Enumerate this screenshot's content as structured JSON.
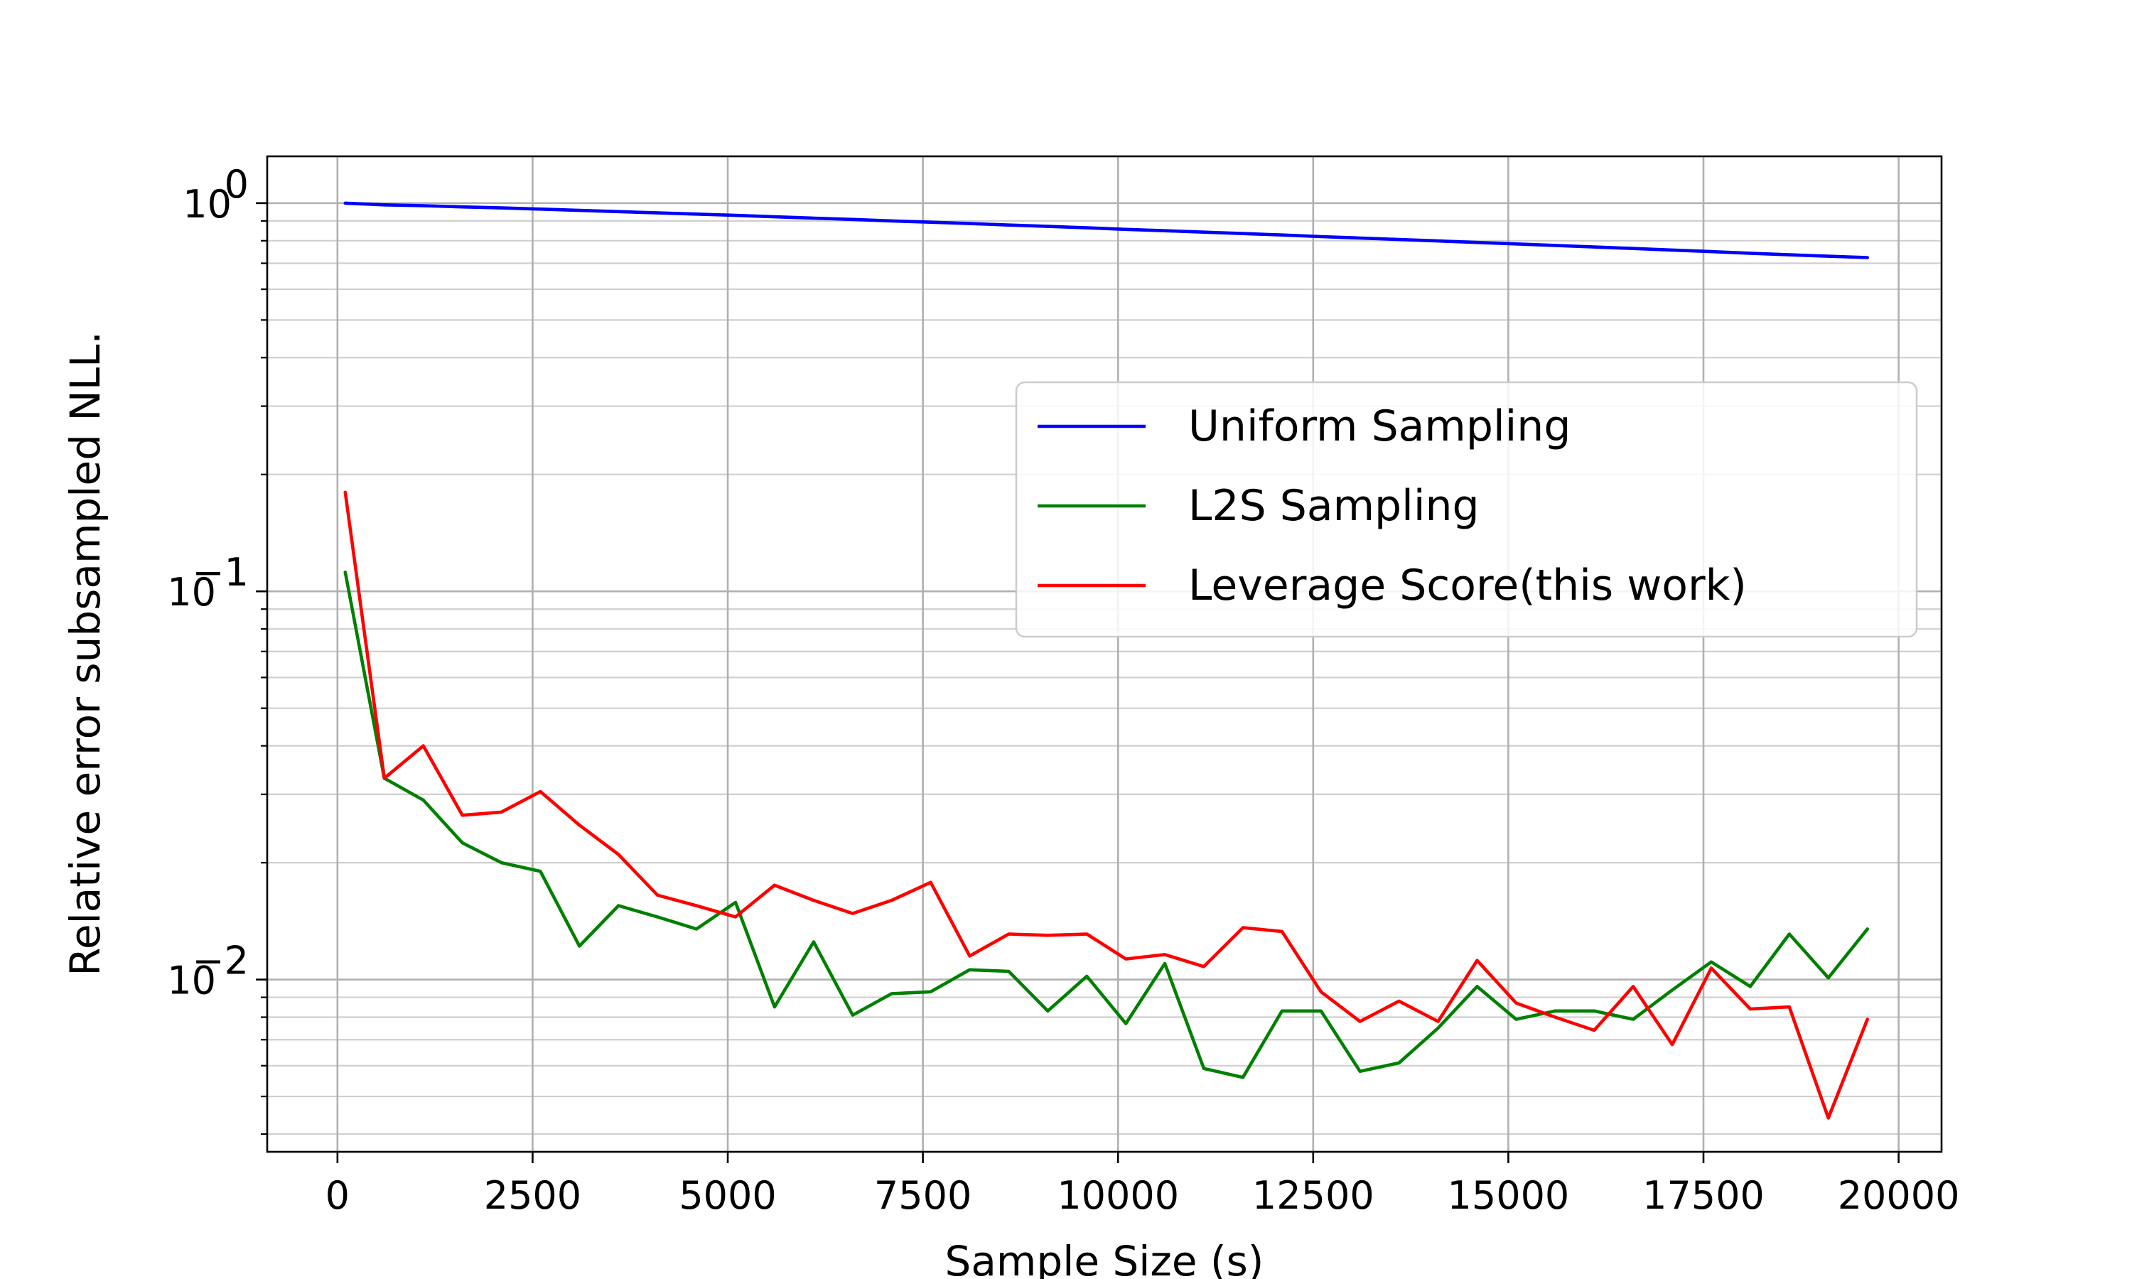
{
  "chart_data": {
    "type": "line",
    "title": "",
    "xlabel": "Sample Size (s)",
    "ylabel": "Relative error subsampled NLL.",
    "yscale": "log",
    "xlim": [
      -900,
      20550
    ],
    "ylim": [
      0.0036,
      1.32
    ],
    "grid": true,
    "legend_position": "center-right",
    "x_ticks": [
      0,
      2500,
      5000,
      7500,
      10000,
      12500,
      15000,
      17500,
      20000
    ],
    "x_tick_labels": [
      "0",
      "2500",
      "5000",
      "7500",
      "10000",
      "12500",
      "15000",
      "17500",
      "20000"
    ],
    "y_ticks": [
      {
        "value": 1,
        "base": "10",
        "exp": "0"
      },
      {
        "value": 0.1,
        "base": "10",
        "exp": "−1"
      },
      {
        "value": 0.01,
        "base": "10",
        "exp": "−2"
      }
    ],
    "x": [
      100,
      600,
      1100,
      1600,
      2100,
      2600,
      3100,
      3600,
      4100,
      4600,
      5100,
      5600,
      6100,
      6600,
      7100,
      7600,
      8100,
      8600,
      9100,
      9600,
      10100,
      10600,
      11100,
      11600,
      12100,
      12600,
      13100,
      13600,
      14100,
      14600,
      15100,
      15600,
      16100,
      16600,
      17100,
      17600,
      18100,
      18600,
      19100,
      19600
    ],
    "series": [
      {
        "name": "Uniform Sampling",
        "color": "#0000ff",
        "values": [
          1.0,
          0.99,
          0.985,
          0.978,
          0.972,
          0.965,
          0.958,
          0.951,
          0.944,
          0.937,
          0.93,
          0.922,
          0.915,
          0.908,
          0.9,
          0.893,
          0.886,
          0.878,
          0.871,
          0.864,
          0.856,
          0.849,
          0.842,
          0.835,
          0.828,
          0.82,
          0.813,
          0.806,
          0.799,
          0.792,
          0.785,
          0.778,
          0.771,
          0.764,
          0.757,
          0.75,
          0.743,
          0.736,
          0.73,
          0.724
        ]
      },
      {
        "name": "L2S Sampling",
        "color": "#008000",
        "values": [
          0.112,
          0.033,
          0.029,
          0.0225,
          0.02,
          0.019,
          0.0122,
          0.0155,
          0.0145,
          0.0135,
          0.0158,
          0.0085,
          0.0125,
          0.0081,
          0.0092,
          0.0093,
          0.0106,
          0.0105,
          0.0083,
          0.0102,
          0.0077,
          0.011,
          0.0059,
          0.0056,
          0.0083,
          0.0083,
          0.0058,
          0.0061,
          0.0075,
          0.0096,
          0.0079,
          0.0083,
          0.0083,
          0.0079,
          0.0094,
          0.0111,
          0.0096,
          0.0131,
          0.0101,
          0.0135
        ]
      },
      {
        "name": "Leverage Score(this work)",
        "color": "#ff0000",
        "values": [
          0.18,
          0.033,
          0.04,
          0.0265,
          0.027,
          0.0305,
          0.025,
          0.021,
          0.0165,
          0.0155,
          0.0145,
          0.0175,
          0.016,
          0.0148,
          0.016,
          0.0178,
          0.0115,
          0.0131,
          0.013,
          0.0131,
          0.0113,
          0.0116,
          0.0108,
          0.0136,
          0.0133,
          0.0093,
          0.0078,
          0.0088,
          0.0078,
          0.0112,
          0.0087,
          0.008,
          0.0074,
          0.0096,
          0.0068,
          0.0107,
          0.0084,
          0.0085,
          0.0044,
          0.0079
        ]
      }
    ]
  }
}
